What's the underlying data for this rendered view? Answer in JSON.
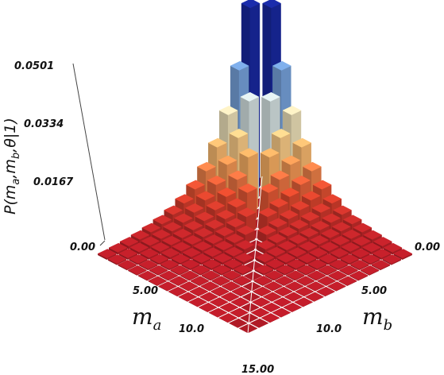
{
  "chart_data": {
    "type": "bar3d",
    "title": "",
    "z_axis": {
      "label": "P(m_a,m_b,θ|1)",
      "ticks": [
        "0.00",
        "0.0167",
        "0.0334",
        "0.0501"
      ],
      "tick_values": [
        0,
        0.0167,
        0.0334,
        0.0501
      ],
      "zlim": [
        0,
        0.0501
      ]
    },
    "x_axis": {
      "label": "m_a",
      "label_base": "m",
      "label_sub": "a",
      "ticks": [
        "5.00",
        "10.0"
      ],
      "tick_values": [
        5,
        10
      ],
      "range": [
        0,
        15
      ]
    },
    "y_axis": {
      "label": "m_b",
      "label_base": "m",
      "label_sub": "b",
      "ticks": [
        "5.00",
        "10.0"
      ],
      "tick_values": [
        5,
        10
      ],
      "range": [
        0,
        15
      ]
    },
    "corner_tick": "15.00",
    "grid_size": 15,
    "distribution": "P(m_a, m_b) for m_a ≠ m_b, zero on the diagonal; peak 0.0501 at (0,1) and (1,0)",
    "colormap": [
      "#b01a26",
      "#d8472c",
      "#f0a45a",
      "#f5d99a",
      "#c7dbe8",
      "#5f8fd0",
      "#2a4fb0",
      "#17279a"
    ],
    "grid_line_color": "#ffffff"
  }
}
